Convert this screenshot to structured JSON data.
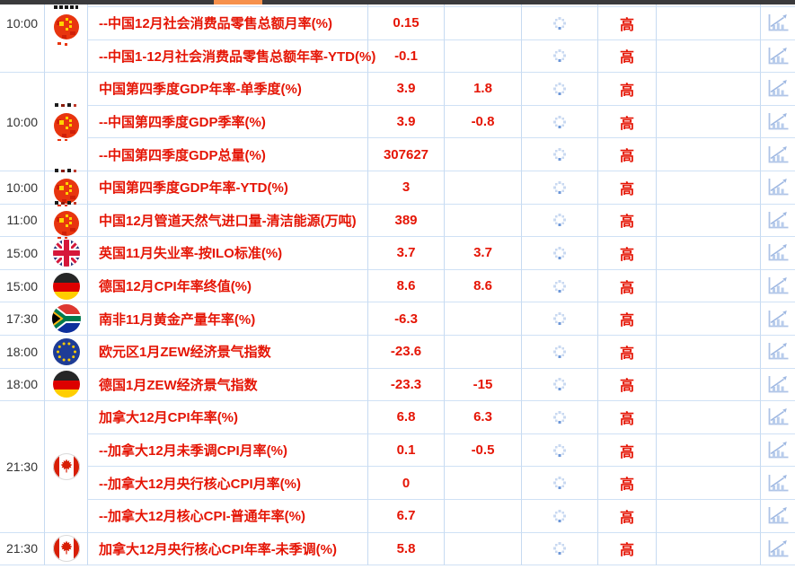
{
  "top_scrollbar": {
    "track_color": "#3a3a3c",
    "thumb_color": "#f6914d"
  },
  "calendar": {
    "importance_label": "高",
    "colors": {
      "event_text_red": "#e51505",
      "value_text_red": "#e51505",
      "time_text": "#333333",
      "grid_border": "#c6daf1",
      "spinner_light": "#c9d9f1",
      "spinner_accent": "#6d97d8",
      "chart_icon_blue": "#b9cdec"
    },
    "icons": {
      "status": "loading-spinner-icon",
      "detail": "bar-chart-icon"
    },
    "groups": [
      {
        "time": "10:00",
        "flag": "cn_tall",
        "flag_name": "china-flag-icon",
        "cutoff": true,
        "rows": [
          {
            "event": "--中国12月社会消费品零售总额月率(%)",
            "actual": "0.15",
            "forecast": "",
            "importance": "高"
          },
          {
            "event": "--中国1-12月社会消费品零售总额年率-YTD(%)",
            "actual": "-0.1",
            "forecast": "",
            "importance": "高"
          }
        ]
      },
      {
        "time": "10:00",
        "flag": "cn",
        "flag_name": "china-flag-icon",
        "rows": [
          {
            "event": "中国第四季度GDP年率-单季度(%)",
            "actual": "3.9",
            "forecast": "1.8",
            "importance": "高"
          },
          {
            "event": "--中国第四季度GDP季率(%)",
            "actual": "3.9",
            "forecast": "-0.8",
            "importance": "高"
          },
          {
            "event": "--中国第四季度GDP总量(%)",
            "actual": "307627",
            "forecast": "",
            "importance": "高"
          }
        ]
      },
      {
        "time": "10:00",
        "flag": "cn",
        "flag_name": "china-flag-icon",
        "rows": [
          {
            "event": "中国第四季度GDP年率-YTD(%)",
            "actual": "3",
            "forecast": "",
            "importance": "高"
          }
        ]
      },
      {
        "time": "11:00",
        "flag": "cn",
        "flag_name": "china-flag-icon",
        "rows": [
          {
            "event": "中国12月管道天然气进口量-清洁能源(万吨)",
            "actual": "389",
            "forecast": "",
            "importance": "高"
          }
        ]
      },
      {
        "time": "15:00",
        "flag": "uk",
        "flag_name": "uk-flag-icon",
        "rows": [
          {
            "event": "英国11月失业率-按ILO标准(%)",
            "actual": "3.7",
            "forecast": "3.7",
            "importance": "高"
          }
        ]
      },
      {
        "time": "15:00",
        "flag": "de",
        "flag_name": "germany-flag-icon",
        "rows": [
          {
            "event": "德国12月CPI年率终值(%)",
            "actual": "8.6",
            "forecast": "8.6",
            "importance": "高"
          }
        ]
      },
      {
        "time": "17:30",
        "flag": "za",
        "flag_name": "south-africa-flag-icon",
        "rows": [
          {
            "event": "南非11月黄金产量年率(%)",
            "actual": "-6.3",
            "forecast": "",
            "importance": "高"
          }
        ]
      },
      {
        "time": "18:00",
        "flag": "eu",
        "flag_name": "eu-flag-icon",
        "rows": [
          {
            "event": "欧元区1月ZEW经济景气指数",
            "actual": "-23.6",
            "forecast": "",
            "importance": "高"
          }
        ]
      },
      {
        "time": "18:00",
        "flag": "de",
        "flag_name": "germany-flag-icon",
        "rows": [
          {
            "event": "德国1月ZEW经济景气指数",
            "actual": "-23.3",
            "forecast": "-15",
            "importance": "高"
          }
        ]
      },
      {
        "time": "21:30",
        "flag": "ca",
        "flag_name": "canada-flag-icon",
        "rows": [
          {
            "event": "加拿大12月CPI年率(%)",
            "actual": "6.8",
            "forecast": "6.3",
            "importance": "高"
          },
          {
            "event": "--加拿大12月未季调CPI月率(%)",
            "actual": "0.1",
            "forecast": "-0.5",
            "importance": "高"
          },
          {
            "event": "--加拿大12月央行核心CPI月率(%)",
            "actual": "0",
            "forecast": "",
            "importance": "高"
          },
          {
            "event": "--加拿大12月核心CPI-普通年率(%)",
            "actual": "6.7",
            "forecast": "",
            "importance": "高"
          }
        ]
      },
      {
        "time": "21:30",
        "flag": "ca",
        "flag_name": "canada-flag-icon",
        "rows": [
          {
            "event": "加拿大12月央行核心CPI年率-未季调(%)",
            "actual": "5.8",
            "forecast": "",
            "importance": "高"
          }
        ]
      }
    ]
  }
}
